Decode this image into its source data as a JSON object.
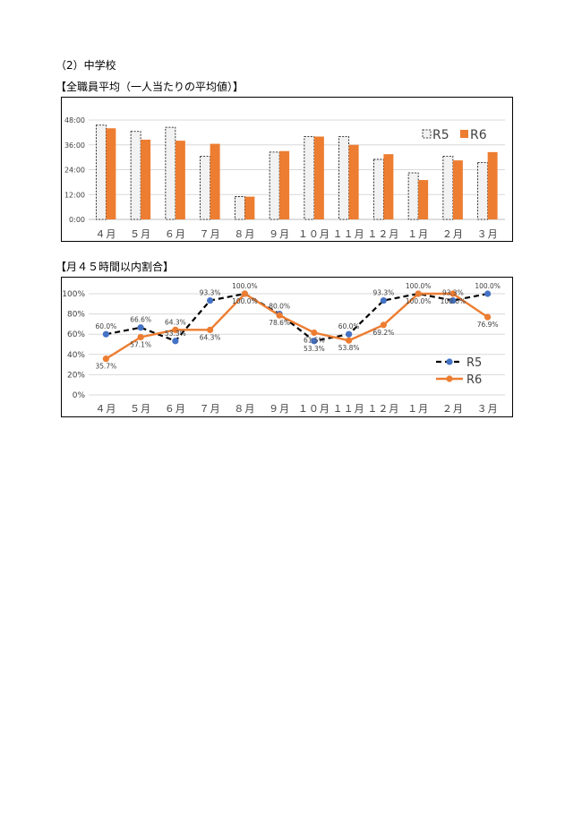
{
  "section_title": "（2）中学校",
  "chart_data": [
    {
      "type": "bar",
      "title": "【全職員平均（一人当たりの平均値）】",
      "categories": [
        "４月",
        "５月",
        "６月",
        "７月",
        "８月",
        "９月",
        "１０月",
        "１１月",
        "１２月",
        "１月",
        "２月",
        "３月"
      ],
      "y_unit": "hours",
      "ylim": [
        0,
        48
      ],
      "y_ticks": [
        "0:00",
        "12:00",
        "24:00",
        "36:00",
        "48:00"
      ],
      "grid": true,
      "legend": "top-right",
      "series": [
        {
          "name": "R5",
          "style": "dashed-outline",
          "color": "#f2f2f2",
          "stroke": "#000000",
          "values": [
            45.5,
            42.5,
            44.5,
            30.5,
            11,
            32.5,
            40,
            40,
            29,
            22.5,
            30.5,
            27.5
          ]
        },
        {
          "name": "R6",
          "style": "filled",
          "color": "#ed7d31",
          "values": [
            44,
            38.5,
            38,
            36.5,
            11,
            33,
            40,
            36,
            31.5,
            19,
            28.5,
            32.5
          ]
        }
      ]
    },
    {
      "type": "line",
      "title": "【月４５時間以内割合】",
      "categories": [
        "４月",
        "５月",
        "６月",
        "７月",
        "８月",
        "９月",
        "１０月",
        "１１月",
        "１２月",
        "１月",
        "２月",
        "３月"
      ],
      "ylim": [
        0,
        100
      ],
      "y_ticks": [
        "0%",
        "20%",
        "40%",
        "60%",
        "80%",
        "100%"
      ],
      "grid": true,
      "legend": "bottom-right",
      "series": [
        {
          "name": "R5",
          "style": "dashed",
          "color": "#000000",
          "marker_color": "#4472c4",
          "values": [
            60.0,
            66.6,
            53.3,
            93.3,
            100.0,
            80.0,
            53.3,
            60.0,
            93.3,
            100.0,
            93.3,
            100.0
          ],
          "labels": [
            "60.0%",
            "66.6%",
            "53.3%",
            "93.3%",
            "100.0%",
            "80.0%",
            "53.3%",
            "60.0%",
            "93.3%",
            "100.0%",
            "93.3%",
            "100.0%"
          ]
        },
        {
          "name": "R6",
          "style": "solid",
          "color": "#ed7d31",
          "marker_color": "#ed7d31",
          "values": [
            35.7,
            57.1,
            64.3,
            64.3,
            100.0,
            78.6,
            61.5,
            53.8,
            69.2,
            100.0,
            100.0,
            76.9
          ],
          "labels": [
            "35.7%",
            "57.1%",
            "64.3%",
            "64.3%",
            "100.0%",
            "78.6%",
            "61.5%",
            "53.8%",
            "69.2%",
            "100.0%",
            "100.0%",
            "76.9%"
          ]
        }
      ]
    }
  ]
}
